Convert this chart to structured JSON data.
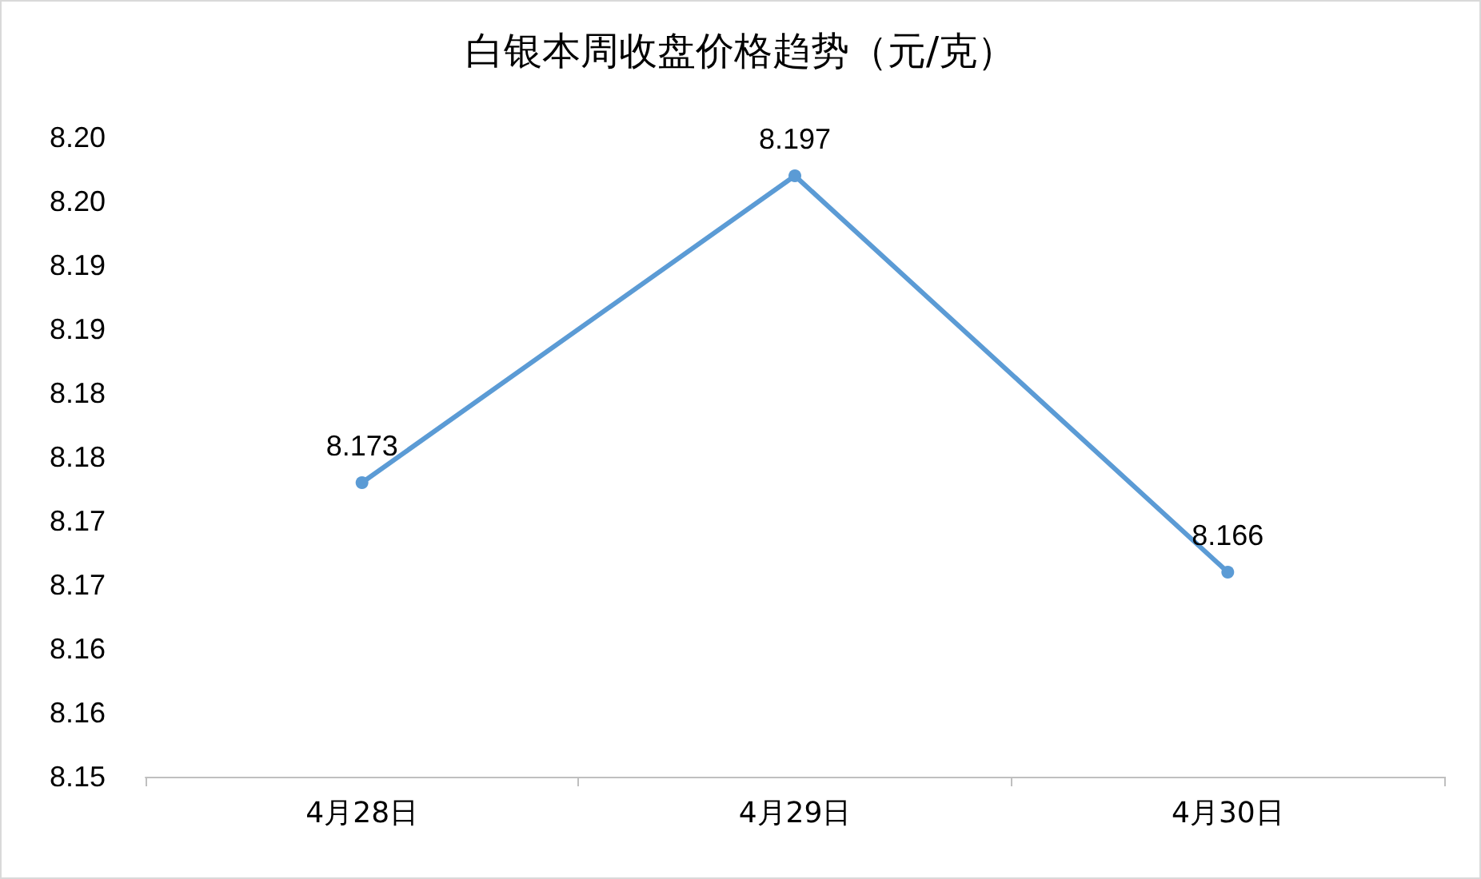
{
  "chart_data": {
    "type": "line",
    "title": "白银本周收盘价格趋势（元/克）",
    "categories": [
      "4月28日",
      "4月29日",
      "4月30日"
    ],
    "series": [
      {
        "color": "#5b9bd5",
        "values": [
          8.173,
          8.197,
          8.166
        ]
      }
    ],
    "ylim": [
      8.15,
      8.2
    ],
    "yticks": [
      8.15,
      {
        "value": 8.155,
        "label": "8.16"
      },
      8.16,
      {
        "value": 8.165,
        "label": "8.17"
      },
      8.17,
      {
        "value": 8.175,
        "label": "8.18"
      },
      8.18,
      {
        "value": 8.185,
        "label": "8.19"
      },
      8.19,
      {
        "value": 8.195,
        "label": "8.20"
      },
      {
        "value": 8.2,
        "label": "8.20"
      }
    ],
    "grid": false,
    "marker": "circle",
    "line_style": "solid",
    "data_labels": true
  }
}
